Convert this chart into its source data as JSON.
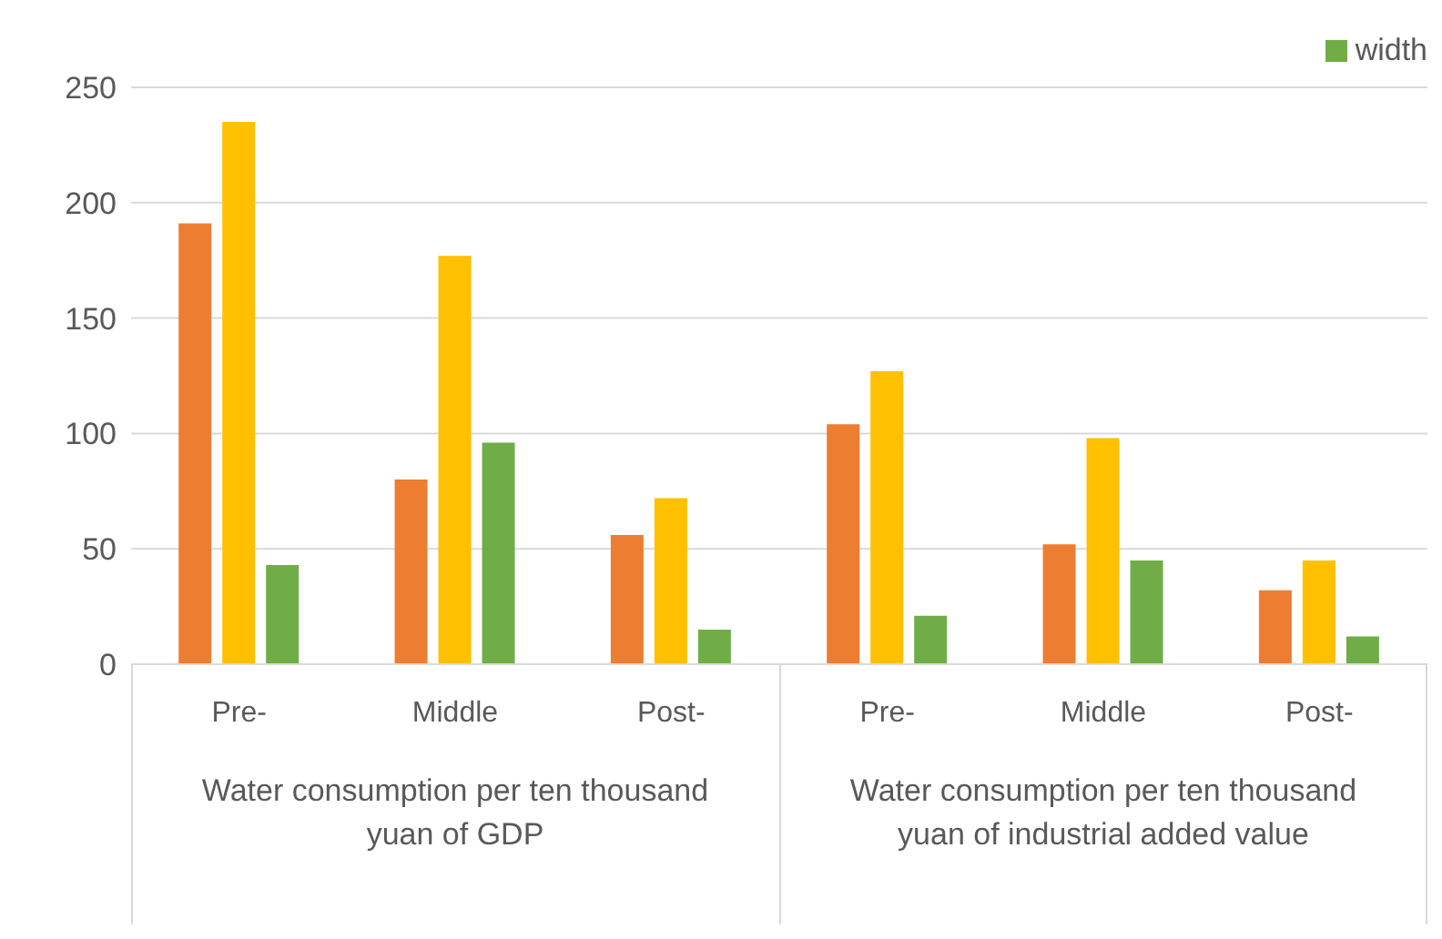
{
  "chart_data": {
    "type": "bar",
    "categories": [
      "Pre-",
      "Middle",
      "Post-",
      "Pre-",
      "Middle",
      "Post-"
    ],
    "series": [
      {
        "color": "#ed7d31",
        "values": [
          191,
          80,
          56,
          104,
          52,
          32
        ]
      },
      {
        "color": "#ffc000",
        "values": [
          235,
          177,
          72,
          127,
          98,
          45
        ]
      },
      {
        "name": "width",
        "color": "#70ad47",
        "values": [
          43,
          96,
          15,
          21,
          45,
          12
        ]
      }
    ],
    "annotations": [
      "Water consumption per ten thousand yuan of GDP",
      "Water consumption per ten thousand yuan of industrial added value"
    ],
    "ylim": [
      0,
      250
    ],
    "yticks": [
      0,
      50,
      100,
      150,
      200,
      250
    ],
    "grid": "y",
    "legend": "top right"
  }
}
